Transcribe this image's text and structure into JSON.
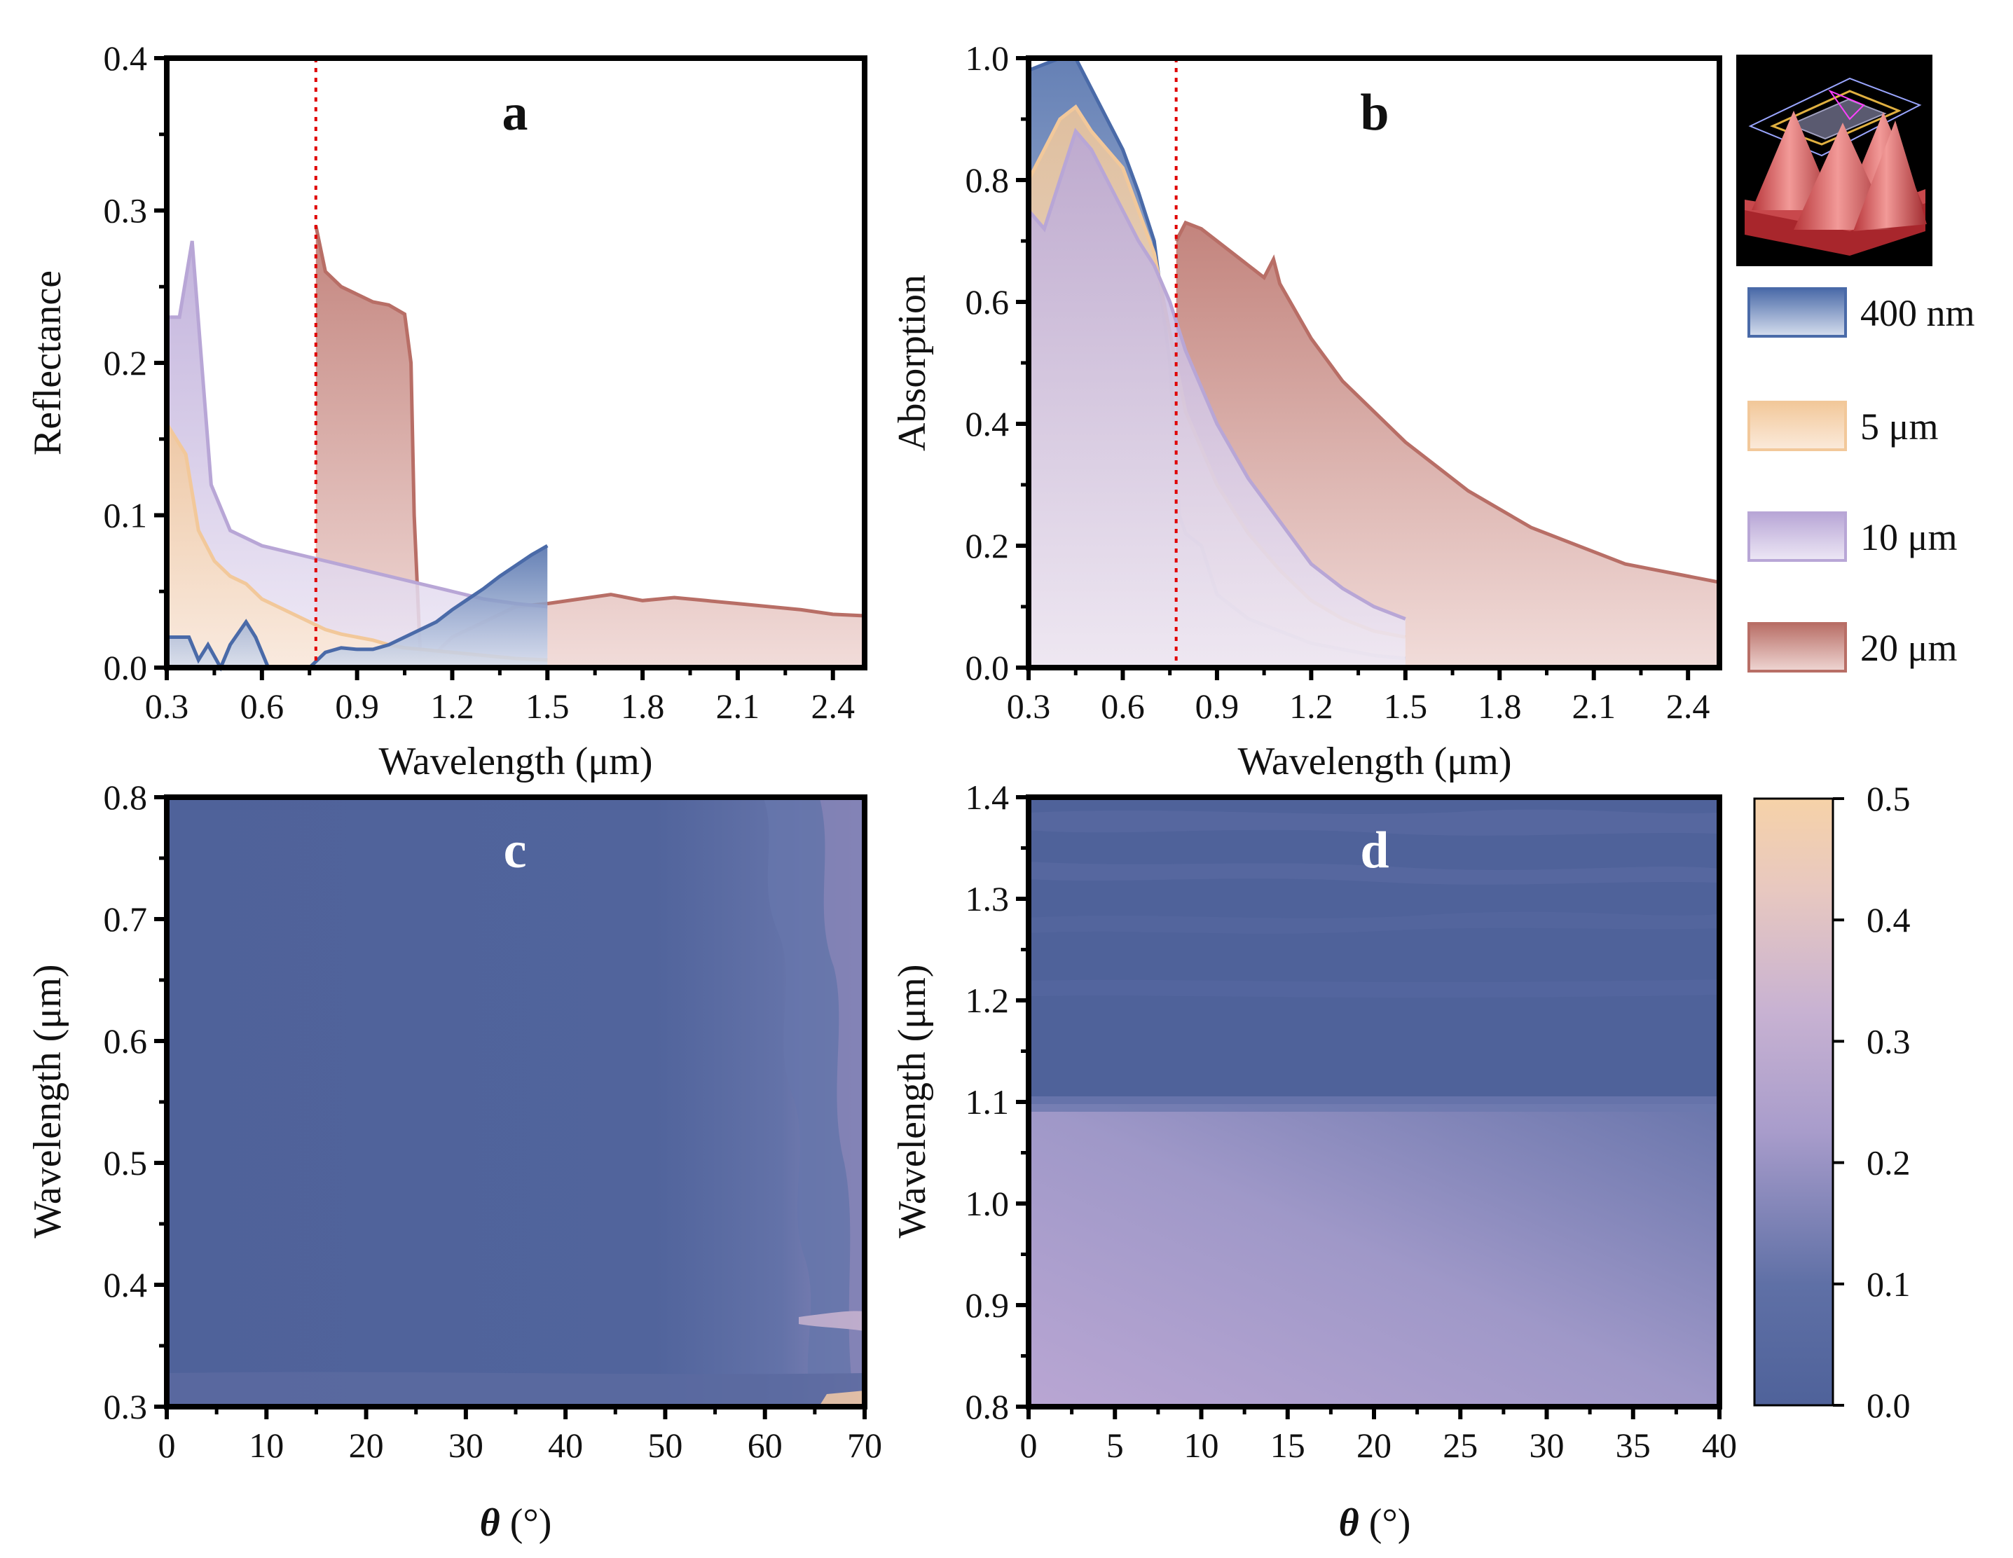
{
  "chart_data": [
    {
      "panel": "a",
      "type": "area",
      "xlabel": "Wavelength (μm)",
      "ylabel": "Reflectance",
      "xlim": [
        0.3,
        2.5
      ],
      "ylim": [
        0.0,
        0.4
      ],
      "xticks": [
        "0.3",
        "0.6",
        "0.9",
        "1.2",
        "1.5",
        "1.8",
        "2.1",
        "2.4"
      ],
      "yticks": [
        "0.0",
        "0.1",
        "0.2",
        "0.3",
        "0.4"
      ],
      "marker_line_x": 0.77,
      "series": [
        {
          "name": "400 nm",
          "x": [
            0.3,
            0.33,
            0.37,
            0.4,
            0.43,
            0.47,
            0.5,
            0.55,
            0.58,
            0.62,
            0.66,
            0.7,
            0.75,
            0.8,
            0.85,
            0.9,
            0.95,
            1.0,
            1.05,
            1.1,
            1.15,
            1.2,
            1.25,
            1.3,
            1.35,
            1.4,
            1.45,
            1.5
          ],
          "y": [
            0.02,
            0.02,
            0.02,
            0.005,
            0.015,
            0.0,
            0.015,
            0.03,
            0.02,
            0.0,
            0.0,
            0.0,
            0.0,
            0.01,
            0.013,
            0.012,
            0.012,
            0.015,
            0.02,
            0.025,
            0.03,
            0.038,
            0.045,
            0.052,
            0.06,
            0.067,
            0.074,
            0.08
          ]
        },
        {
          "name": "5 μm",
          "x": [
            0.3,
            0.33,
            0.36,
            0.4,
            0.45,
            0.5,
            0.55,
            0.6,
            0.65,
            0.7,
            0.75,
            0.8,
            0.85,
            0.9,
            0.95,
            1.0,
            1.05,
            1.1,
            1.2,
            1.3,
            1.4,
            1.5
          ],
          "y": [
            0.16,
            0.15,
            0.14,
            0.09,
            0.07,
            0.06,
            0.055,
            0.045,
            0.04,
            0.035,
            0.03,
            0.025,
            0.022,
            0.02,
            0.018,
            0.015,
            0.013,
            0.012,
            0.01,
            0.008,
            0.006,
            0.005
          ]
        },
        {
          "name": "10 μm",
          "x": [
            0.3,
            0.34,
            0.38,
            0.41,
            0.44,
            0.5,
            0.55,
            0.6,
            0.7,
            0.8,
            0.9,
            1.0,
            1.1,
            1.2,
            1.3,
            1.4,
            1.5
          ],
          "y": [
            0.23,
            0.23,
            0.28,
            0.2,
            0.12,
            0.09,
            0.085,
            0.08,
            0.075,
            0.07,
            0.065,
            0.06,
            0.055,
            0.05,
            0.045,
            0.042,
            0.04
          ]
        },
        {
          "name": "20 μm",
          "x": [
            0.77,
            0.8,
            0.85,
            0.9,
            0.95,
            1.0,
            1.05,
            1.07,
            1.08,
            1.1,
            1.15,
            1.2,
            1.3,
            1.4,
            1.5,
            1.6,
            1.7,
            1.8,
            1.9,
            2.0,
            2.1,
            2.2,
            2.3,
            2.4,
            2.5
          ],
          "y": [
            0.29,
            0.26,
            0.25,
            0.245,
            0.24,
            0.238,
            0.232,
            0.2,
            0.1,
            0.005,
            0.01,
            0.02,
            0.03,
            0.04,
            0.042,
            0.045,
            0.048,
            0.044,
            0.046,
            0.044,
            0.042,
            0.04,
            0.038,
            0.035,
            0.034
          ]
        }
      ]
    },
    {
      "panel": "b",
      "type": "area",
      "xlabel": "Wavelength (μm)",
      "ylabel": "Absorption",
      "xlim": [
        0.3,
        2.5
      ],
      "ylim": [
        0.0,
        1.0
      ],
      "xticks": [
        "0.3",
        "0.6",
        "0.9",
        "1.2",
        "1.5",
        "1.8",
        "2.1",
        "2.4"
      ],
      "yticks": [
        "0.0",
        "0.2",
        "0.4",
        "0.6",
        "0.8",
        "1.0"
      ],
      "marker_line_x": 0.77,
      "series": [
        {
          "name": "400 nm",
          "x": [
            0.3,
            0.35,
            0.4,
            0.45,
            0.5,
            0.55,
            0.6,
            0.65,
            0.7,
            0.75,
            0.78,
            0.8,
            0.85,
            0.9,
            1.0,
            1.1,
            1.2,
            1.3,
            1.4,
            1.5
          ],
          "y": [
            0.98,
            0.99,
            1.0,
            1.0,
            0.95,
            0.9,
            0.85,
            0.78,
            0.7,
            0.5,
            0.25,
            0.22,
            0.2,
            0.12,
            0.08,
            0.06,
            0.04,
            0.03,
            0.02,
            0.015
          ]
        },
        {
          "name": "5 μm",
          "x": [
            0.3,
            0.35,
            0.4,
            0.45,
            0.5,
            0.55,
            0.6,
            0.65,
            0.7,
            0.75,
            0.8,
            0.9,
            1.0,
            1.1,
            1.2,
            1.3,
            1.4,
            1.5
          ],
          "y": [
            0.8,
            0.85,
            0.9,
            0.92,
            0.88,
            0.85,
            0.82,
            0.75,
            0.68,
            0.55,
            0.42,
            0.3,
            0.22,
            0.16,
            0.11,
            0.08,
            0.06,
            0.05
          ]
        },
        {
          "name": "10 μm",
          "x": [
            0.3,
            0.35,
            0.4,
            0.45,
            0.5,
            0.55,
            0.6,
            0.65,
            0.7,
            0.75,
            0.8,
            0.9,
            1.0,
            1.1,
            1.2,
            1.3,
            1.4,
            1.5
          ],
          "y": [
            0.75,
            0.72,
            0.8,
            0.88,
            0.85,
            0.8,
            0.75,
            0.7,
            0.66,
            0.6,
            0.52,
            0.4,
            0.31,
            0.24,
            0.17,
            0.13,
            0.1,
            0.08
          ]
        },
        {
          "name": "20 μm",
          "x": [
            0.77,
            0.8,
            0.85,
            0.9,
            0.95,
            1.0,
            1.05,
            1.08,
            1.1,
            1.2,
            1.3,
            1.4,
            1.5,
            1.6,
            1.7,
            1.8,
            1.9,
            2.0,
            2.1,
            2.2,
            2.3,
            2.4,
            2.5
          ],
          "y": [
            0.7,
            0.73,
            0.72,
            0.7,
            0.68,
            0.66,
            0.64,
            0.67,
            0.63,
            0.54,
            0.47,
            0.42,
            0.37,
            0.33,
            0.29,
            0.26,
            0.23,
            0.21,
            0.19,
            0.17,
            0.16,
            0.15,
            0.14
          ]
        }
      ]
    },
    {
      "panel": "c",
      "type": "heatmap",
      "xlabel": "θ (°)",
      "ylabel": "Wavelength (μm)",
      "xlim": [
        0,
        70
      ],
      "ylim": [
        0.3,
        0.8
      ],
      "xticks": [
        "0",
        "10",
        "20",
        "30",
        "40",
        "50",
        "60",
        "70"
      ],
      "yticks": [
        "0.3",
        "0.4",
        "0.5",
        "0.6",
        "0.7",
        "0.8"
      ],
      "description_values": "mostly 0.0–0.05, rising to ~0.3 near θ=70°"
    },
    {
      "panel": "d",
      "type": "heatmap",
      "xlabel": "θ (°)",
      "ylabel": "Wavelength (μm)",
      "xlim": [
        0,
        40
      ],
      "ylim": [
        0.8,
        1.4
      ],
      "xticks": [
        "0",
        "5",
        "10",
        "15",
        "20",
        "25",
        "30",
        "35",
        "40"
      ],
      "yticks": [
        "0.8",
        "0.9",
        "1.0",
        "1.1",
        "1.2",
        "1.3",
        "1.4"
      ],
      "colorbar": {
        "min": 0.0,
        "max": 0.5,
        "ticks": [
          "0.0",
          "0.1",
          "0.2",
          "0.3",
          "0.4",
          "0.5"
        ]
      }
    }
  ],
  "panels": {
    "a": {
      "letter": "a",
      "xlabel": "Wavelength (μm)",
      "ylabel": "Reflectance"
    },
    "b": {
      "letter": "b",
      "xlabel": "Wavelength (μm)",
      "ylabel": "Absorption"
    },
    "c": {
      "letter": "c",
      "xlabel_sym": "θ",
      "xlabel_unit": " (°)",
      "ylabel": "Wavelength (μm)"
    },
    "d": {
      "letter": "d",
      "xlabel_sym": "θ",
      "xlabel_unit": " (°)",
      "ylabel": "Wavelength (μm)"
    }
  },
  "legend": [
    {
      "label": "400 nm",
      "color": "#4a6aa8",
      "fill_light": "#d6deee"
    },
    {
      "label": "5 μm",
      "color": "#f2c89a",
      "fill_light": "#fbeadb"
    },
    {
      "label": "10 μm",
      "color": "#b8a6d6",
      "fill_light": "#ede7f5"
    },
    {
      "label": "20 μm",
      "color": "#b86e66",
      "fill_light": "#efd6d3"
    }
  ],
  "colors": {
    "marker_line": "#e00000",
    "axis": "#000000",
    "heat_low": "#4f629a",
    "heat_mid": "#b8a8d2",
    "heat_high": "#f6d2a8"
  }
}
